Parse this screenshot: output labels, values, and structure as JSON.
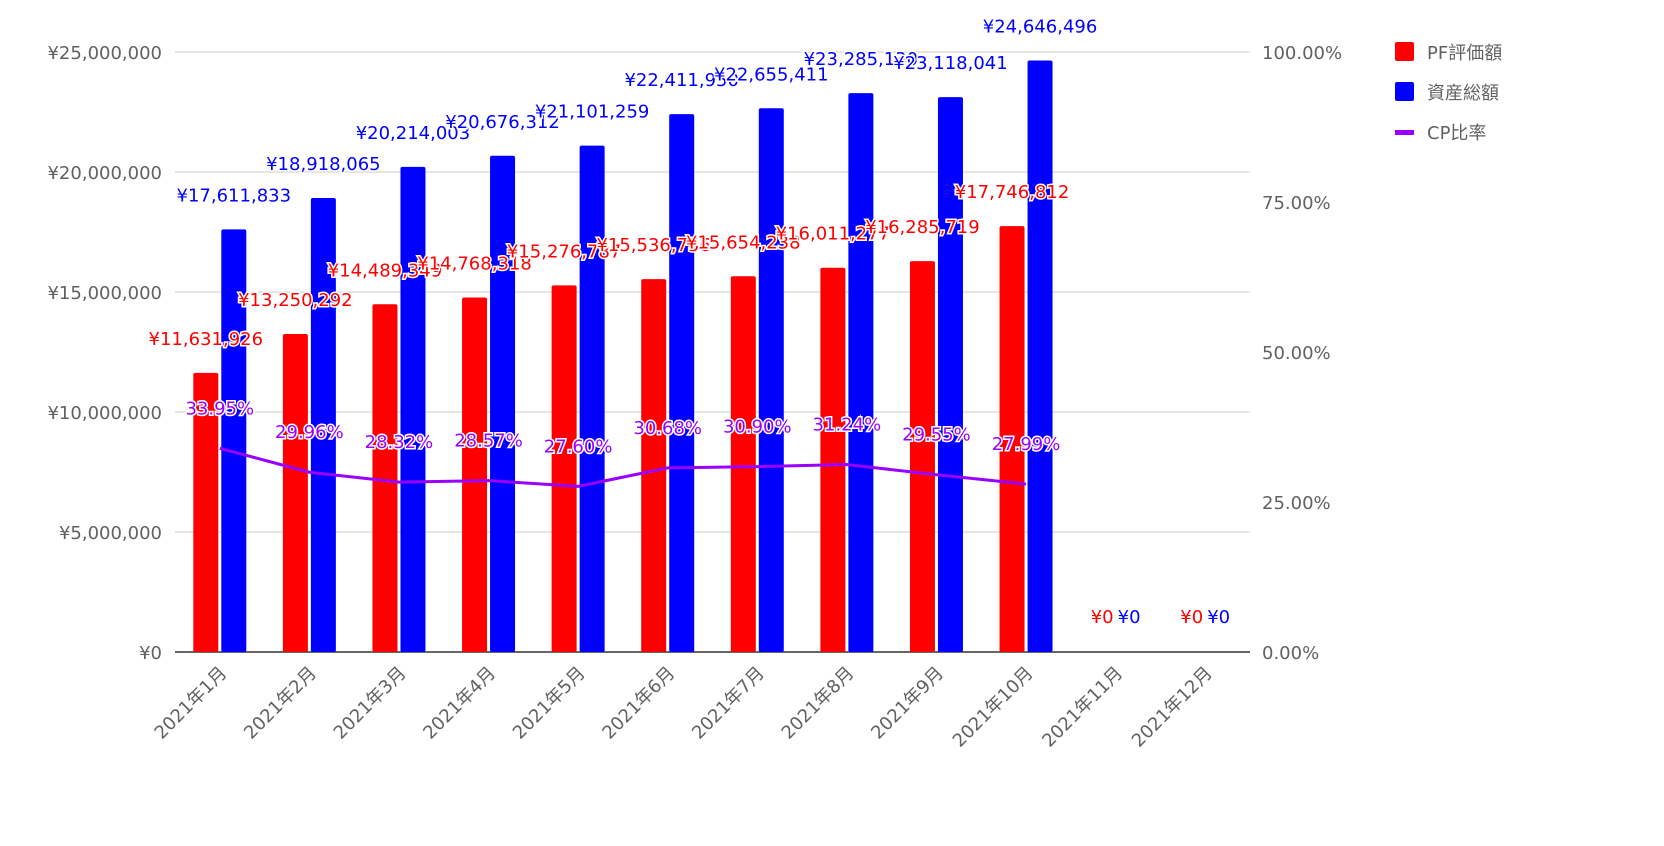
{
  "chart_data": {
    "type": "bar+line",
    "title": "",
    "categories": [
      "2021年1月",
      "2021年2月",
      "2021年3月",
      "2021年4月",
      "2021年5月",
      "2021年6月",
      "2021年7月",
      "2021年8月",
      "2021年9月",
      "2021年10月",
      "2021年11月",
      "2021年12月"
    ],
    "series": [
      {
        "name": "PF評価額",
        "type": "bar",
        "axis": "left",
        "color": "#ff0000",
        "values": [
          11631926,
          13250292,
          14489349,
          14768318,
          15276787,
          15536756,
          15654238,
          16011277,
          16285719,
          17746812,
          0,
          0
        ],
        "labels": [
          "¥11,631,926",
          "¥13,250,292",
          "¥14,489,349",
          "¥14,768,318",
          "¥15,276,787",
          "¥15,536,756",
          "¥15,654,238",
          "¥16,011,277",
          "¥16,285,719",
          "¥17,746,812",
          "¥0",
          "¥0"
        ]
      },
      {
        "name": "資産総額",
        "type": "bar",
        "axis": "left",
        "color": "#0000ff",
        "values": [
          17611833,
          18918065,
          20214003,
          20676312,
          21101259,
          22411950,
          22655411,
          23285130,
          23118041,
          24646496,
          0,
          0
        ],
        "labels": [
          "¥17,611,833",
          "¥18,918,065",
          "¥20,214,003",
          "¥20,676,312",
          "¥21,101,259",
          "¥22,411,950",
          "¥22,655,411",
          "¥23,285,130",
          "¥23,118,041",
          "¥24,646,496",
          "¥0",
          "¥0"
        ]
      },
      {
        "name": "CP比率",
        "type": "line",
        "axis": "right",
        "color": "#9900ff",
        "values": [
          33.95,
          29.96,
          28.32,
          28.57,
          27.6,
          30.68,
          30.9,
          31.24,
          29.55,
          27.99,
          null,
          null
        ],
        "labels": [
          "33.95%",
          "29.96%",
          "28.32%",
          "28.57%",
          "27.60%",
          "30.68%",
          "30.90%",
          "31.24%",
          "29.55%",
          "27.99%",
          "",
          ""
        ]
      }
    ],
    "left_axis": {
      "min": 0,
      "max": 25000000,
      "ticks": [
        0,
        5000000,
        10000000,
        15000000,
        20000000,
        25000000
      ],
      "tick_labels": [
        "¥0",
        "¥5,000,000",
        "¥10,000,000",
        "¥15,000,000",
        "¥20,000,000",
        "¥25,000,000"
      ]
    },
    "right_axis": {
      "min": 0,
      "max": 100,
      "ticks": [
        0,
        25,
        50,
        75,
        100
      ],
      "tick_labels": [
        "0.00%",
        "25.00%",
        "50.00%",
        "75.00%",
        "100.00%"
      ]
    },
    "grid": true,
    "legend_position": "top-right",
    "xlabel": "",
    "ylabel": ""
  }
}
